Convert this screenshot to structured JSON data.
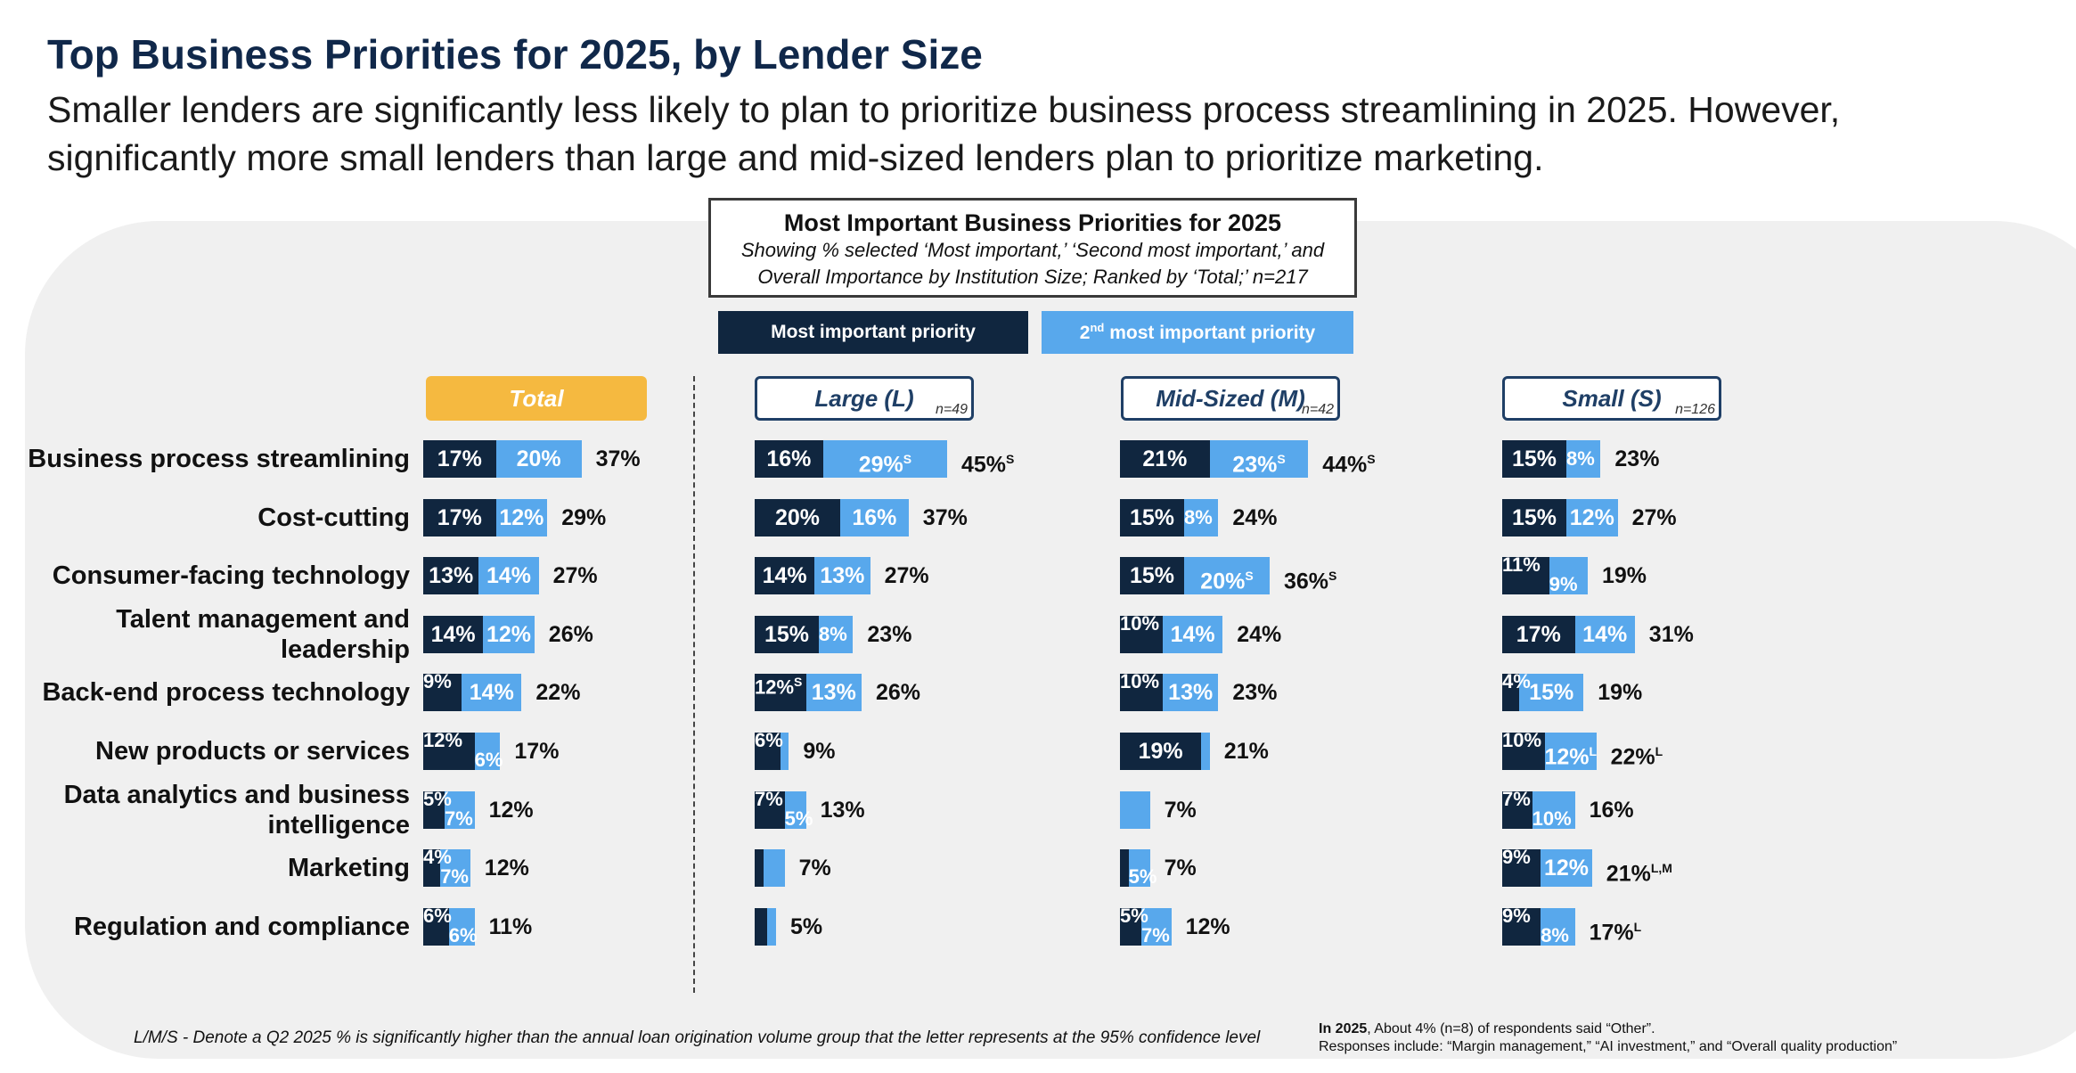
{
  "title": "Top Business Priorities for 2025, by Lender Size",
  "subtitle": "Smaller lenders are significantly less likely to plan to prioritize business process streamlining in 2025. However, significantly more small lenders than large and mid-sized lenders plan to prioritize marketing.",
  "colors": {
    "most_important": "#10263f",
    "second_most_important": "#58a8ec",
    "total_header": "#f5b940"
  },
  "chart_data": {
    "type": "bar",
    "stacked": true,
    "orientation": "horizontal",
    "title": "Most Important Business Priorities for 2025",
    "subtitle_line1": "Showing % selected ‘Most important,’ ‘Second most important,’ and",
    "subtitle_line2": "Overall Importance by Institution Size; Ranked by ‘Total;’ n=217",
    "legend": {
      "most_important": "Most important priority",
      "second_prefix": "2",
      "second_sup": "nd",
      "second_rest": " most important priority"
    },
    "categories": [
      "Business process streamlining",
      "Cost-cutting",
      "Consumer-facing technology",
      "Talent management and leadership",
      "Back-end process technology",
      "New products or services",
      "Data analytics and business intelligence",
      "Marketing",
      "Regulation and compliance"
    ],
    "groups": [
      {
        "name": "Total",
        "n": "",
        "most": [
          17,
          17,
          13,
          14,
          9,
          12,
          5,
          4,
          6
        ],
        "second": [
          20,
          12,
          14,
          12,
          14,
          6,
          7,
          7,
          6
        ],
        "total": [
          37,
          29,
          27,
          26,
          22,
          17,
          12,
          12,
          11
        ],
        "most_sig": [
          "",
          "",
          "",
          "",
          "",
          "",
          "",
          "",
          ""
        ],
        "second_sig": [
          "",
          "",
          "",
          "",
          "",
          "",
          "",
          "",
          ""
        ],
        "total_sig": [
          "",
          "",
          "",
          "",
          "",
          "",
          "",
          "",
          ""
        ]
      },
      {
        "name": "Large (L)",
        "n": "n=49",
        "most": [
          16,
          20,
          14,
          15,
          12,
          6,
          7,
          2,
          3
        ],
        "second": [
          29,
          16,
          13,
          8,
          13,
          2,
          5,
          5,
          2
        ],
        "total": [
          45,
          37,
          27,
          23,
          26,
          9,
          13,
          7,
          5
        ],
        "most_sig": [
          "",
          "",
          "",
          "",
          "S",
          "",
          "",
          "",
          ""
        ],
        "second_sig": [
          "S",
          "",
          "",
          "",
          "",
          "",
          "",
          "",
          ""
        ],
        "total_sig": [
          "S",
          "",
          "",
          "",
          "",
          "",
          "",
          "",
          ""
        ]
      },
      {
        "name": "Mid-Sized (M)",
        "n": "n=42",
        "most": [
          21,
          15,
          15,
          10,
          10,
          19,
          0,
          2,
          5
        ],
        "second": [
          23,
          8,
          20,
          14,
          13,
          2,
          7,
          5,
          7
        ],
        "total": [
          44,
          24,
          36,
          24,
          23,
          21,
          7,
          7,
          12
        ],
        "most_sig": [
          "",
          "",
          "",
          "",
          "",
          "",
          "",
          "",
          ""
        ],
        "second_sig": [
          "S",
          "",
          "S",
          "",
          "",
          "",
          "",
          "",
          ""
        ],
        "total_sig": [
          "S",
          "",
          "S",
          "",
          "",
          "",
          "",
          "",
          ""
        ]
      },
      {
        "name": "Small (S)",
        "n": "n=126",
        "most": [
          15,
          15,
          11,
          17,
          4,
          10,
          7,
          9,
          9
        ],
        "second": [
          8,
          12,
          9,
          14,
          15,
          12,
          10,
          12,
          8
        ],
        "total": [
          23,
          27,
          19,
          31,
          19,
          22,
          16,
          21,
          17
        ],
        "most_sig": [
          "",
          "",
          "",
          "",
          "",
          "",
          "",
          "",
          ""
        ],
        "second_sig": [
          "",
          "",
          "",
          "",
          "",
          "L",
          "",
          "",
          ""
        ],
        "total_sig": [
          "",
          "",
          "",
          "",
          "",
          "L",
          "",
          "L,M",
          "L"
        ]
      }
    ],
    "hidden_labels": {
      "Large (L)": {
        "most": [
          false,
          false,
          false,
          false,
          false,
          false,
          false,
          true,
          true
        ],
        "second": [
          false,
          false,
          false,
          false,
          false,
          true,
          false,
          true,
          true
        ]
      },
      "Mid-Sized (M)": {
        "most": [
          false,
          false,
          false,
          false,
          false,
          false,
          true,
          true,
          false
        ],
        "second": [
          false,
          false,
          false,
          false,
          false,
          true,
          true,
          false,
          false
        ]
      },
      "Total": {
        "most": [
          false,
          false,
          false,
          false,
          false,
          false,
          false,
          false,
          false
        ],
        "second": [
          false,
          false,
          false,
          false,
          false,
          false,
          false,
          false,
          false
        ]
      },
      "Small (S)": {
        "most": [
          false,
          false,
          false,
          false,
          false,
          false,
          false,
          false,
          false
        ],
        "second": [
          false,
          false,
          false,
          false,
          false,
          false,
          false,
          false,
          false
        ]
      }
    }
  },
  "footnotes": {
    "left": "L/M/S - Denote a Q2 2025 % is significantly higher than the annual loan origination volume group that the letter represents at the 95% confidence level",
    "right_bold": "In 2025",
    "right_line1_rest": ", About 4% (n=8) of respondents said “Other”.",
    "right_line2": "Responses include: “Margin management,” “AI investment,” and “Overall quality production”"
  }
}
